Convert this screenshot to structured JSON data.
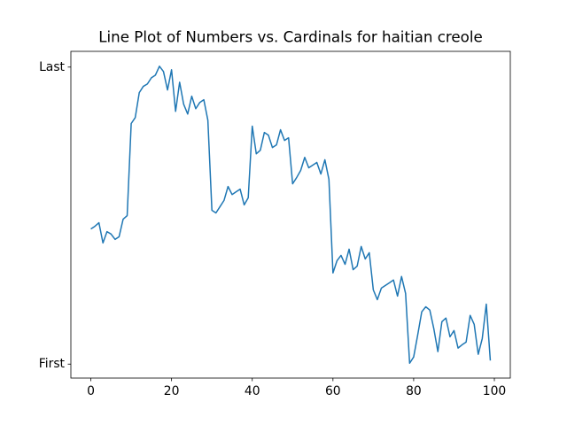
{
  "chart_data": {
    "type": "line",
    "title": "Line Plot of Numbers vs. Cardinals for haitian creole",
    "x": [
      0,
      1,
      2,
      3,
      4,
      5,
      6,
      7,
      8,
      9,
      10,
      11,
      12,
      13,
      14,
      15,
      16,
      17,
      18,
      19,
      20,
      21,
      22,
      23,
      24,
      25,
      26,
      27,
      28,
      29,
      30,
      31,
      32,
      33,
      34,
      35,
      36,
      37,
      38,
      39,
      40,
      41,
      42,
      43,
      44,
      45,
      46,
      47,
      48,
      49,
      50,
      51,
      52,
      53,
      54,
      55,
      56,
      57,
      58,
      59,
      60,
      61,
      62,
      63,
      64,
      65,
      66,
      67,
      68,
      69,
      70,
      71,
      72,
      73,
      74,
      75,
      76,
      77,
      78,
      79,
      80,
      81,
      82,
      83,
      84,
      85,
      86,
      87,
      88,
      89,
      90,
      91,
      92,
      93,
      94,
      95,
      96,
      97,
      98,
      99
    ],
    "series": [
      {
        "color": "#1f77b4",
        "values": [
          0.455,
          0.464,
          0.476,
          0.408,
          0.446,
          0.438,
          0.42,
          0.429,
          0.488,
          0.5,
          0.81,
          0.83,
          0.914,
          0.935,
          0.943,
          0.964,
          0.973,
          1.003,
          0.985,
          0.923,
          0.991,
          0.851,
          0.949,
          0.875,
          0.842,
          0.902,
          0.86,
          0.881,
          0.89,
          0.821,
          0.518,
          0.509,
          0.53,
          0.551,
          0.598,
          0.571,
          0.58,
          0.589,
          0.536,
          0.56,
          0.801,
          0.708,
          0.72,
          0.78,
          0.771,
          0.729,
          0.738,
          0.789,
          0.753,
          0.762,
          0.607,
          0.628,
          0.652,
          0.696,
          0.661,
          0.67,
          0.679,
          0.64,
          0.688,
          0.622,
          0.307,
          0.348,
          0.366,
          0.336,
          0.387,
          0.318,
          0.33,
          0.396,
          0.354,
          0.375,
          0.25,
          0.217,
          0.256,
          0.265,
          0.274,
          0.283,
          0.229,
          0.295,
          0.238,
          0.003,
          0.024,
          0.098,
          0.176,
          0.193,
          0.182,
          0.119,
          0.042,
          0.143,
          0.155,
          0.092,
          0.113,
          0.054,
          0.065,
          0.074,
          0.164,
          0.134,
          0.033,
          0.086,
          0.202,
          0.012
        ]
      }
    ],
    "xlim": [
      -4.95,
      103.95
    ],
    "xticks": [
      0,
      20,
      40,
      60,
      80,
      100
    ],
    "ylim": [
      -0.047,
      1.053
    ],
    "yticks": [
      {
        "value": 0,
        "label": "First"
      },
      {
        "value": 1,
        "label": "Last"
      }
    ]
  }
}
